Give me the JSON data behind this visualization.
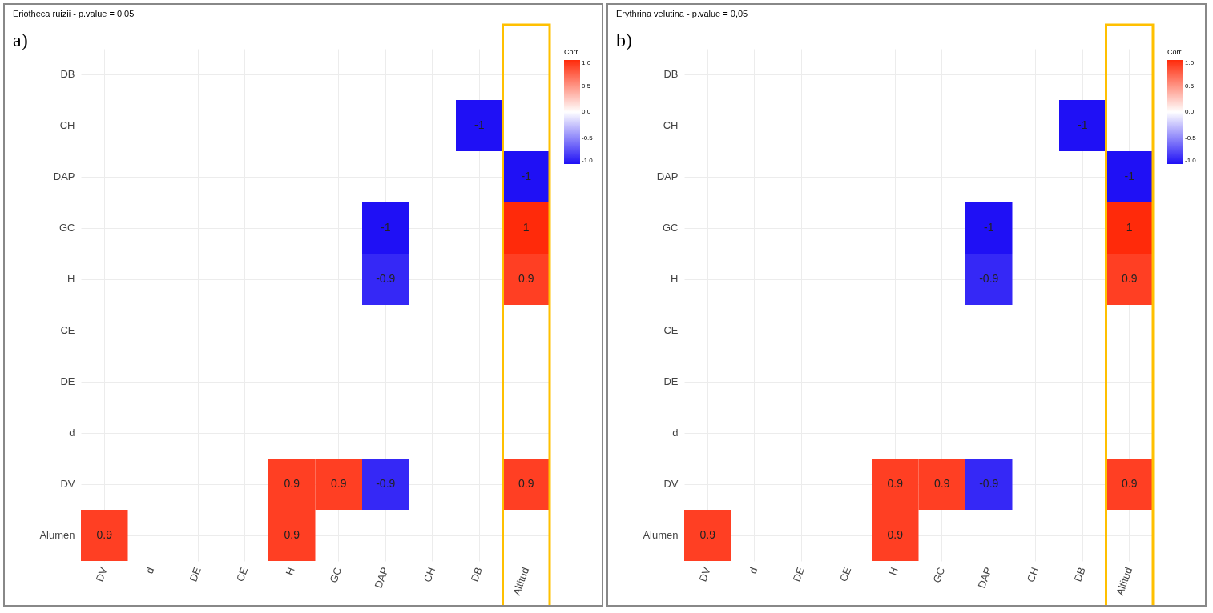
{
  "chart_data": [
    {
      "type": "heatmap",
      "title": "Eriotheca ruizii - p.value = 0,05",
      "annotations": [
        "a)"
      ],
      "categories": [
        "DV",
        "d",
        "DE",
        "CE",
        "H",
        "GC",
        "DAP",
        "CH",
        "DB",
        "Altitud"
      ],
      "y_categories": [
        "DB",
        "CH",
        "DAP",
        "GC",
        "H",
        "CE",
        "DE",
        "d",
        "DV",
        "Alumen"
      ],
      "cells": [
        [
          null,
          null,
          null,
          null,
          null,
          null,
          null,
          null,
          null,
          null
        ],
        [
          null,
          null,
          null,
          null,
          null,
          null,
          null,
          null,
          -1,
          null
        ],
        [
          null,
          null,
          null,
          null,
          null,
          null,
          null,
          null,
          null,
          -1
        ],
        [
          null,
          null,
          null,
          null,
          null,
          null,
          -1,
          null,
          null,
          1
        ],
        [
          null,
          null,
          null,
          null,
          null,
          null,
          -0.9,
          null,
          null,
          0.9
        ],
        [
          null,
          null,
          null,
          null,
          null,
          null,
          null,
          null,
          null,
          null
        ],
        [
          null,
          null,
          null,
          null,
          null,
          null,
          null,
          null,
          null,
          null
        ],
        [
          null,
          null,
          null,
          null,
          null,
          null,
          null,
          null,
          null,
          null
        ],
        [
          null,
          null,
          null,
          null,
          0.9,
          0.9,
          -0.9,
          null,
          null,
          0.9
        ],
        [
          0.9,
          null,
          null,
          null,
          0.9,
          null,
          null,
          null,
          null,
          null
        ]
      ],
      "data_labels": true,
      "clabel": "Corr",
      "clim": [
        -1,
        1
      ],
      "cticks": [
        {
          "value": 1,
          "label": "1.0"
        },
        {
          "value": 0.5,
          "label": "0.5"
        },
        {
          "value": 0,
          "label": "0.0"
        },
        {
          "value": -0.5,
          "label": "-0.5"
        },
        {
          "value": -1,
          "label": "-1.0"
        }
      ],
      "grid": true
    },
    {
      "type": "heatmap",
      "title": "Erythrina velutina - p.value = 0,05",
      "annotations": [
        "b)"
      ],
      "categories": [
        "DV",
        "d",
        "DE",
        "CE",
        "H",
        "GC",
        "DAP",
        "CH",
        "DB",
        "Altitud"
      ],
      "y_categories": [
        "DB",
        "CH",
        "DAP",
        "GC",
        "H",
        "CE",
        "DE",
        "d",
        "DV",
        "Alumen"
      ],
      "cells": [
        [
          null,
          null,
          null,
          null,
          null,
          null,
          null,
          null,
          null,
          null
        ],
        [
          null,
          null,
          null,
          null,
          null,
          null,
          null,
          null,
          -1,
          null
        ],
        [
          null,
          null,
          null,
          null,
          null,
          null,
          null,
          null,
          null,
          -1
        ],
        [
          null,
          null,
          null,
          null,
          null,
          null,
          -1,
          null,
          null,
          1
        ],
        [
          null,
          null,
          null,
          null,
          null,
          null,
          -0.9,
          null,
          null,
          0.9
        ],
        [
          null,
          null,
          null,
          null,
          null,
          null,
          null,
          null,
          null,
          null
        ],
        [
          null,
          null,
          null,
          null,
          null,
          null,
          null,
          null,
          null,
          null
        ],
        [
          null,
          null,
          null,
          null,
          null,
          null,
          null,
          null,
          null,
          null
        ],
        [
          null,
          null,
          null,
          null,
          0.9,
          0.9,
          -0.9,
          null,
          null,
          0.9
        ],
        [
          0.9,
          null,
          null,
          null,
          0.9,
          null,
          null,
          null,
          null,
          null
        ]
      ],
      "data_labels": true,
      "clabel": "Corr",
      "clim": [
        -1,
        1
      ],
      "cticks": [
        {
          "value": 1,
          "label": "1.0"
        },
        {
          "value": 0.5,
          "label": "0.5"
        },
        {
          "value": 0,
          "label": "0.0"
        },
        {
          "value": -0.5,
          "label": "-0.5"
        },
        {
          "value": -1,
          "label": "-1.0"
        }
      ],
      "grid": true
    }
  ]
}
